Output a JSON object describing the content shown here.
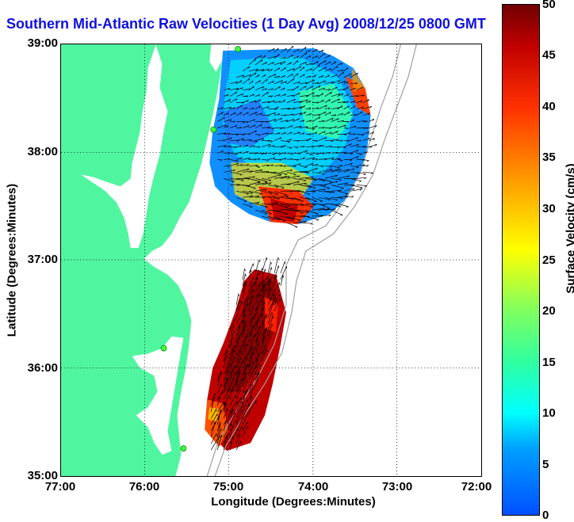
{
  "title": "Southern Mid-Atlantic Raw Velocities (1 Day Avg) 2008/12/25 0800 GMT",
  "axes": {
    "xlabel": "Longitude (Degrees:Minutes)",
    "ylabel": "Latitude (Degrees:Minutes)",
    "xticks": [
      "77:00",
      "76:00",
      "75:00",
      "74:00",
      "73:00",
      "72:00"
    ],
    "yticks": [
      "39:00",
      "38:00",
      "37:00",
      "36:00",
      "35:00"
    ],
    "xlim_deg_west": [
      77,
      72
    ],
    "ylim_deg_north": [
      35,
      39
    ],
    "grid": "dotted"
  },
  "colorbar": {
    "label": "Surface Velocity (cm/s)",
    "ticks": [
      "50",
      "45",
      "40",
      "35",
      "30",
      "25",
      "20",
      "15",
      "10",
      "5",
      "0"
    ],
    "range": [
      0,
      50
    ],
    "colormap": "jet"
  },
  "colors": {
    "land": "#50f5a0",
    "water": "#ffffff",
    "title": "#1010e0",
    "site_marker": "#40ff40",
    "bathymetry": "#a0a0a0"
  }
}
